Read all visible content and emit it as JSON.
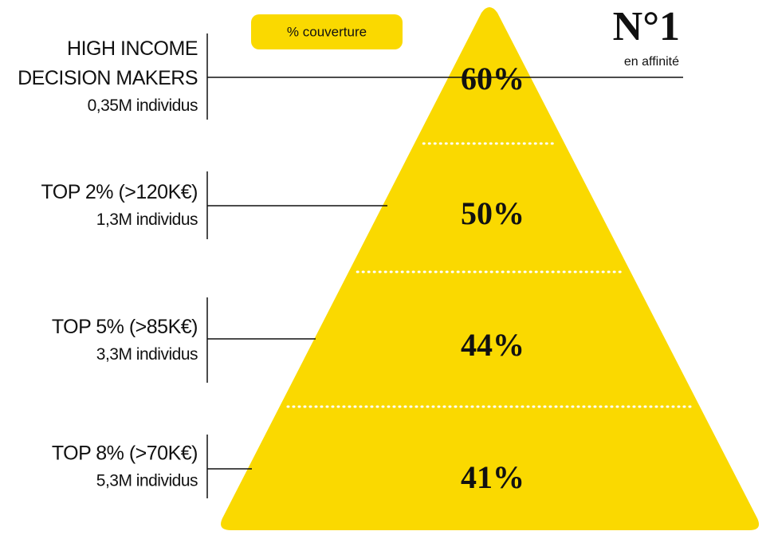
{
  "legend": "% couverture",
  "badge": {
    "rank": "N°1",
    "caption": "en affinité"
  },
  "levels": [
    {
      "label_lines": [
        "HIGH INCOME",
        "DECISION MAKERS"
      ],
      "population": "0,35M individus",
      "coverage": "60%"
    },
    {
      "label_lines": [
        "TOP 2% (>120K€)"
      ],
      "population": "1,3M individus",
      "coverage": "50%"
    },
    {
      "label_lines": [
        "TOP 5% (>85K€)"
      ],
      "population": "3,3M individus",
      "coverage": "44%"
    },
    {
      "label_lines": [
        "TOP 8% (>70K€)"
      ],
      "population": "5,3M individus",
      "coverage": "41%"
    }
  ]
}
